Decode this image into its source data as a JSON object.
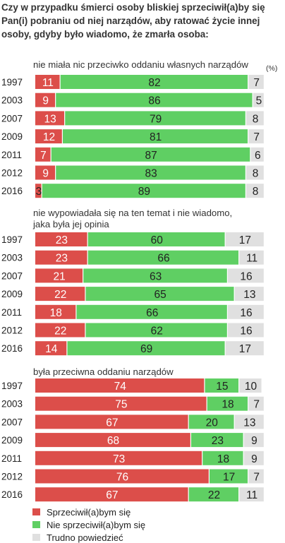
{
  "title": "Czy w przypadku śmierci osoby bliskiej sprzeciwił(a)by się Pan(i) pobraniu od niej narządów, aby ratować życie innej osoby, gdyby było wiadomo, że zmarła osoba:",
  "unit": "(%)",
  "colors": {
    "oppose": "#dc4e4a",
    "not_oppose": "#5fcf63",
    "dont_know": "#e0e0e0"
  },
  "legend": [
    "Sprzeciwił(a)bym się",
    "Nie sprzeciwił(a)bym się",
    "Trudno powiedzieć"
  ],
  "chart_data": {
    "type": "bar",
    "stacked": true,
    "orientation": "horizontal",
    "unit": "%",
    "series_names": [
      "Sprzeciwił(a)bym się",
      "Nie sprzeciwił(a)bym się",
      "Trudno powiedzieć"
    ],
    "panels": [
      {
        "title": "nie miała nic przeciwko oddaniu własnych narządów",
        "categories": [
          "1997",
          "2003",
          "2007",
          "2009",
          "2011",
          "2012",
          "2016"
        ],
        "series": [
          {
            "name": "Sprzeciwił(a)bym się",
            "values": [
              11,
              9,
              13,
              12,
              7,
              9,
              3
            ]
          },
          {
            "name": "Nie sprzeciwił(a)bym się",
            "values": [
              82,
              86,
              79,
              81,
              87,
              83,
              89
            ]
          },
          {
            "name": "Trudno powiedzieć",
            "values": [
              7,
              5,
              8,
              7,
              6,
              8,
              8
            ]
          }
        ]
      },
      {
        "title": "nie wypowiadała się na ten temat i nie wiadomo, jaka była jej opinia",
        "categories": [
          "1997",
          "2003",
          "2007",
          "2009",
          "2011",
          "2012",
          "2016"
        ],
        "series": [
          {
            "name": "Sprzeciwił(a)bym się",
            "values": [
              23,
              23,
              21,
              22,
              18,
              22,
              14
            ]
          },
          {
            "name": "Nie sprzeciwił(a)bym się",
            "values": [
              60,
              66,
              63,
              65,
              66,
              62,
              69
            ]
          },
          {
            "name": "Trudno powiedzieć",
            "values": [
              17,
              11,
              16,
              13,
              16,
              16,
              17
            ]
          }
        ]
      },
      {
        "title": "była przeciwna oddaniu narządów",
        "categories": [
          "1997",
          "2003",
          "2007",
          "2009",
          "2011",
          "2012",
          "2016"
        ],
        "series": [
          {
            "name": "Sprzeciwił(a)bym się",
            "values": [
              74,
              75,
              67,
              68,
              73,
              76,
              67
            ]
          },
          {
            "name": "Nie sprzeciwił(a)bym się",
            "values": [
              15,
              18,
              20,
              23,
              18,
              17,
              22
            ]
          },
          {
            "name": "Trudno powiedzieć",
            "values": [
              10,
              7,
              13,
              9,
              9,
              7,
              11
            ]
          }
        ]
      }
    ]
  }
}
